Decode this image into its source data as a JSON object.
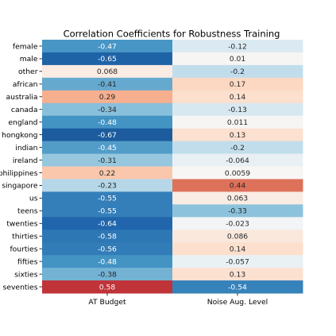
{
  "chart_data": {
    "type": "heatmap",
    "title": "Correlation Coefficients for Robustness Training",
    "columns": [
      "AT Budget",
      "Noise Aug. Level"
    ],
    "rows": [
      "female",
      "male",
      "other",
      "african",
      "australia",
      "canada",
      "england",
      "hongkong",
      "indian",
      "ireland",
      "philippines",
      "singapore",
      "us",
      "teens",
      "twenties",
      "thirties",
      "fourties",
      "fifties",
      "sixties",
      "seventies"
    ],
    "values": [
      [
        -0.47,
        -0.12
      ],
      [
        -0.65,
        0.01
      ],
      [
        0.068,
        -0.2
      ],
      [
        -0.41,
        0.17
      ],
      [
        0.29,
        0.14
      ],
      [
        -0.34,
        -0.13
      ],
      [
        -0.48,
        0.011
      ],
      [
        -0.67,
        0.13
      ],
      [
        -0.45,
        -0.2
      ],
      [
        -0.31,
        -0.064
      ],
      [
        0.22,
        0.0059
      ],
      [
        -0.23,
        0.44
      ],
      [
        -0.55,
        0.063
      ],
      [
        -0.55,
        -0.33
      ],
      [
        -0.64,
        -0.023
      ],
      [
        -0.58,
        0.086
      ],
      [
        -0.56,
        0.14
      ],
      [
        -0.48,
        -0.057
      ],
      [
        -0.38,
        0.13
      ],
      [
        0.58,
        -0.54
      ]
    ],
    "labels": [
      [
        "-0.47",
        "-0.12"
      ],
      [
        "-0.65",
        "0.01"
      ],
      [
        "0.068",
        "-0.2"
      ],
      [
        "-0.41",
        "0.17"
      ],
      [
        "0.29",
        "0.14"
      ],
      [
        "-0.34",
        "-0.13"
      ],
      [
        "-0.48",
        "0.011"
      ],
      [
        "-0.67",
        "0.13"
      ],
      [
        "-0.45",
        "-0.2"
      ],
      [
        "-0.31",
        "-0.064"
      ],
      [
        "0.22",
        "0.0059"
      ],
      [
        "-0.23",
        "0.44"
      ],
      [
        "-0.55",
        "0.063"
      ],
      [
        "-0.55",
        "-0.33"
      ],
      [
        "-0.64",
        "-0.023"
      ],
      [
        "-0.58",
        "0.086"
      ],
      [
        "-0.56",
        "0.14"
      ],
      [
        "-0.48",
        "-0.057"
      ],
      [
        "-0.38",
        "0.13"
      ],
      [
        "0.58",
        "-0.54"
      ]
    ],
    "colormap": "RdBu_r",
    "color_range": [
      -0.8,
      0.8
    ],
    "colors": {
      "negative": "#2166ac",
      "neutral": "#f7f7f7",
      "positive": "#b2182b"
    }
  }
}
